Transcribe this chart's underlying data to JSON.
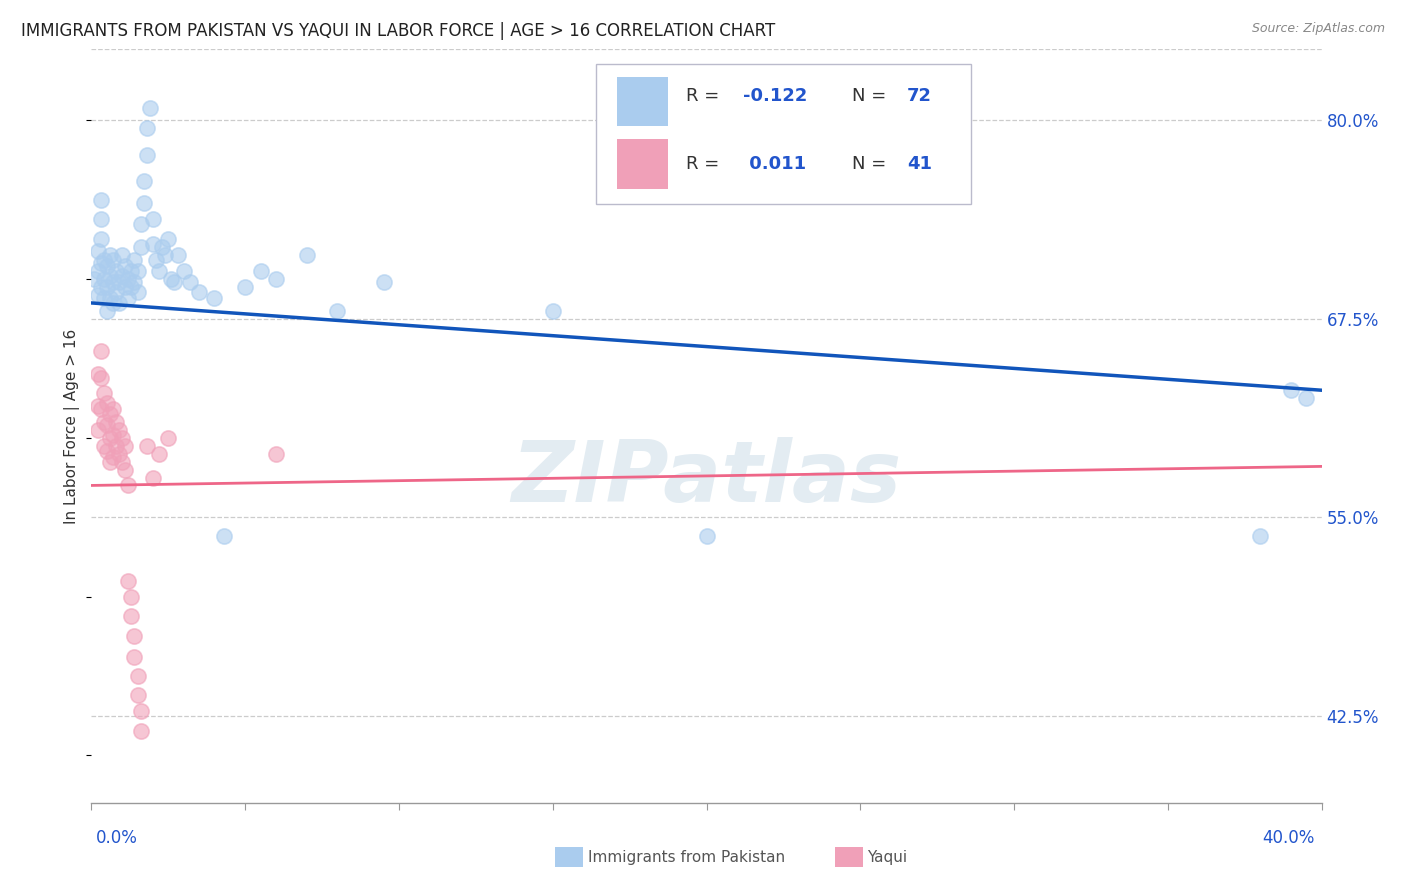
{
  "title": "IMMIGRANTS FROM PAKISTAN VS YAQUI IN LABOR FORCE | AGE > 16 CORRELATION CHART",
  "source": "Source: ZipAtlas.com",
  "ylabel": "In Labor Force | Age > 16",
  "right_ytick_vals": [
    0.425,
    0.55,
    0.675,
    0.8
  ],
  "right_yticklabels": [
    "42.5%",
    "55.0%",
    "67.5%",
    "80.0%"
  ],
  "xlim": [
    0.0,
    0.4
  ],
  "ylim": [
    0.37,
    0.845
  ],
  "xticks": [
    0.0,
    0.05,
    0.1,
    0.15,
    0.2,
    0.25,
    0.3,
    0.35,
    0.4
  ],
  "pakistan_color": "#aaccee",
  "yaqui_color": "#f0a0b8",
  "pakistan_trend_color": "#1155bb",
  "yaqui_trend_color": "#ee6688",
  "label_color": "#2255cc",
  "grid_color": "#cccccc",
  "bg_color": "#ffffff",
  "watermark": "ZIPatlas",
  "blue_dots": [
    [
      0.001,
      0.7
    ],
    [
      0.002,
      0.69
    ],
    [
      0.002,
      0.705
    ],
    [
      0.002,
      0.718
    ],
    [
      0.003,
      0.695
    ],
    [
      0.003,
      0.71
    ],
    [
      0.003,
      0.725
    ],
    [
      0.003,
      0.738
    ],
    [
      0.003,
      0.75
    ],
    [
      0.004,
      0.7
    ],
    [
      0.004,
      0.712
    ],
    [
      0.004,
      0.688
    ],
    [
      0.005,
      0.695
    ],
    [
      0.005,
      0.708
    ],
    [
      0.005,
      0.68
    ],
    [
      0.006,
      0.702
    ],
    [
      0.006,
      0.715
    ],
    [
      0.006,
      0.688
    ],
    [
      0.007,
      0.698
    ],
    [
      0.007,
      0.685
    ],
    [
      0.007,
      0.712
    ],
    [
      0.008,
      0.705
    ],
    [
      0.008,
      0.692
    ],
    [
      0.009,
      0.698
    ],
    [
      0.009,
      0.685
    ],
    [
      0.01,
      0.702
    ],
    [
      0.01,
      0.715
    ],
    [
      0.011,
      0.695
    ],
    [
      0.011,
      0.708
    ],
    [
      0.012,
      0.7
    ],
    [
      0.012,
      0.688
    ],
    [
      0.013,
      0.695
    ],
    [
      0.013,
      0.705
    ],
    [
      0.014,
      0.712
    ],
    [
      0.014,
      0.698
    ],
    [
      0.015,
      0.705
    ],
    [
      0.015,
      0.692
    ],
    [
      0.016,
      0.72
    ],
    [
      0.016,
      0.735
    ],
    [
      0.017,
      0.748
    ],
    [
      0.017,
      0.762
    ],
    [
      0.018,
      0.778
    ],
    [
      0.018,
      0.795
    ],
    [
      0.019,
      0.808
    ],
    [
      0.02,
      0.722
    ],
    [
      0.02,
      0.738
    ],
    [
      0.021,
      0.712
    ],
    [
      0.022,
      0.705
    ],
    [
      0.023,
      0.72
    ],
    [
      0.024,
      0.715
    ],
    [
      0.025,
      0.725
    ],
    [
      0.026,
      0.7
    ],
    [
      0.027,
      0.698
    ],
    [
      0.028,
      0.715
    ],
    [
      0.03,
      0.705
    ],
    [
      0.032,
      0.698
    ],
    [
      0.035,
      0.692
    ],
    [
      0.04,
      0.688
    ],
    [
      0.043,
      0.538
    ],
    [
      0.05,
      0.695
    ],
    [
      0.055,
      0.705
    ],
    [
      0.06,
      0.7
    ],
    [
      0.07,
      0.715
    ],
    [
      0.08,
      0.68
    ],
    [
      0.095,
      0.698
    ],
    [
      0.15,
      0.68
    ],
    [
      0.2,
      0.538
    ],
    [
      0.38,
      0.538
    ],
    [
      0.39,
      0.63
    ],
    [
      0.395,
      0.625
    ]
  ],
  "pink_dots": [
    [
      0.002,
      0.64
    ],
    [
      0.002,
      0.62
    ],
    [
      0.002,
      0.605
    ],
    [
      0.003,
      0.655
    ],
    [
      0.003,
      0.638
    ],
    [
      0.003,
      0.618
    ],
    [
      0.004,
      0.628
    ],
    [
      0.004,
      0.61
    ],
    [
      0.004,
      0.595
    ],
    [
      0.005,
      0.622
    ],
    [
      0.005,
      0.608
    ],
    [
      0.005,
      0.592
    ],
    [
      0.006,
      0.615
    ],
    [
      0.006,
      0.6
    ],
    [
      0.006,
      0.585
    ],
    [
      0.007,
      0.618
    ],
    [
      0.007,
      0.602
    ],
    [
      0.007,
      0.588
    ],
    [
      0.008,
      0.61
    ],
    [
      0.008,
      0.595
    ],
    [
      0.009,
      0.605
    ],
    [
      0.009,
      0.59
    ],
    [
      0.01,
      0.6
    ],
    [
      0.01,
      0.585
    ],
    [
      0.011,
      0.595
    ],
    [
      0.011,
      0.58
    ],
    [
      0.012,
      0.57
    ],
    [
      0.012,
      0.51
    ],
    [
      0.013,
      0.5
    ],
    [
      0.013,
      0.488
    ],
    [
      0.014,
      0.475
    ],
    [
      0.014,
      0.462
    ],
    [
      0.015,
      0.45
    ],
    [
      0.015,
      0.438
    ],
    [
      0.016,
      0.428
    ],
    [
      0.016,
      0.415
    ],
    [
      0.018,
      0.595
    ],
    [
      0.02,
      0.575
    ],
    [
      0.022,
      0.59
    ],
    [
      0.025,
      0.6
    ],
    [
      0.06,
      0.59
    ]
  ],
  "blue_trend_x": [
    0.0,
    0.4
  ],
  "blue_trend_y": [
    0.685,
    0.63
  ],
  "pink_trend_x": [
    0.0,
    0.4
  ],
  "pink_trend_y": [
    0.57,
    0.582
  ]
}
